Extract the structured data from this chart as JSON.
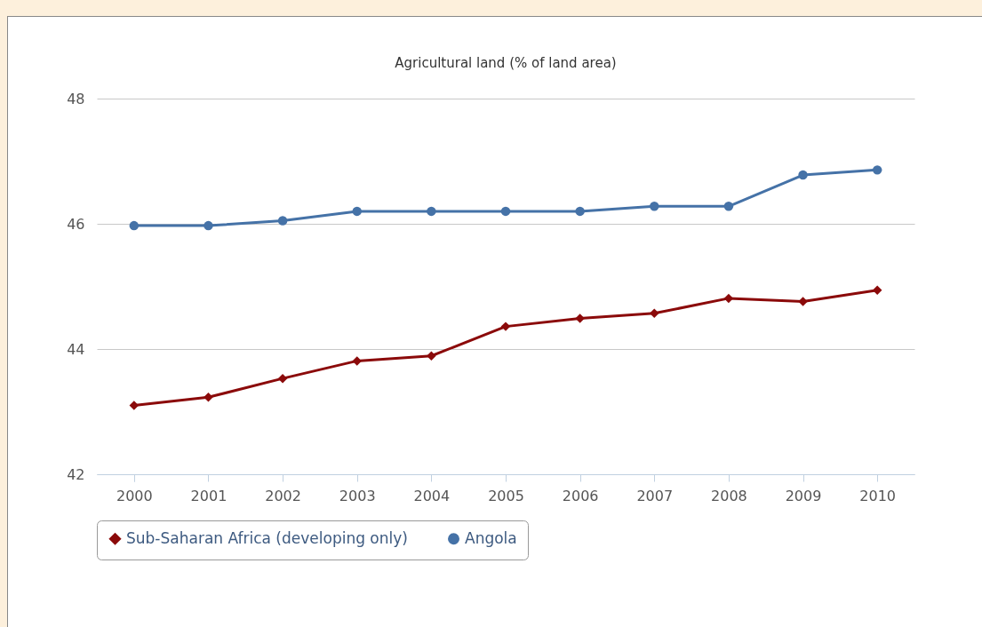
{
  "chart_data": {
    "type": "line",
    "title": "Agricultural land (% of land area)",
    "categories": [
      "2000",
      "2001",
      "2002",
      "2003",
      "2004",
      "2005",
      "2006",
      "2007",
      "2008",
      "2009",
      "2010"
    ],
    "series": [
      {
        "name": "Sub-Saharan Africa (developing only)",
        "color": "#8b0a0a",
        "marker": "diamond",
        "values": [
          43.1,
          43.23,
          43.53,
          43.81,
          43.89,
          44.36,
          44.49,
          44.57,
          44.81,
          44.76,
          44.94
        ]
      },
      {
        "name": "Angola",
        "color": "#4572a7",
        "marker": "circle",
        "values": [
          45.97,
          45.97,
          46.05,
          46.2,
          46.2,
          46.2,
          46.2,
          46.28,
          46.28,
          46.78,
          46.86
        ]
      }
    ],
    "ylim": [
      42,
      48
    ],
    "yticks": [
      42,
      44,
      46,
      48
    ],
    "grid": "y",
    "legend": "bottom"
  }
}
